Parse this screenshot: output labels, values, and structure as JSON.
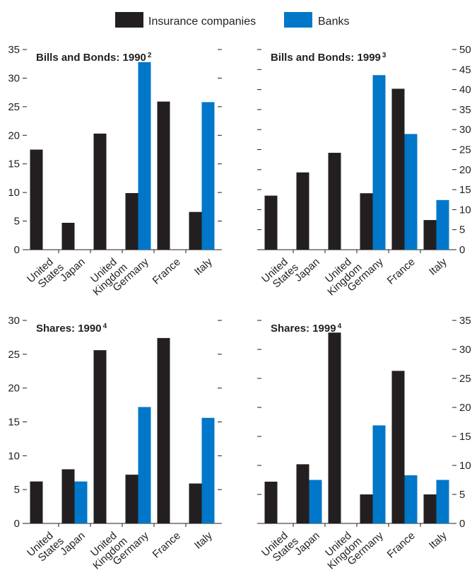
{
  "colors": {
    "insurance": "#231f20",
    "banks": "#0077c8",
    "axis": "#231f20"
  },
  "legend": [
    {
      "label": "Insurance companies",
      "color": "#231f20"
    },
    {
      "label": "Banks",
      "color": "#0077c8"
    }
  ],
  "chart_data": [
    {
      "type": "bar",
      "title": "Bills and Bonds: 1990",
      "title_sup": "2",
      "categories": [
        "United States",
        "Japan",
        "United Kingdom",
        "Germany",
        "France",
        "Italy"
      ],
      "series": [
        {
          "name": "Insurance companies",
          "values": [
            17.5,
            4.7,
            20.3,
            9.9,
            25.9,
            6.6
          ]
        },
        {
          "name": "Banks",
          "values": [
            0,
            0,
            0,
            32.8,
            0,
            25.8
          ]
        }
      ],
      "y_axis": "left",
      "ylim": [
        0,
        35
      ],
      "yticks": [
        0,
        5,
        10,
        15,
        20,
        25,
        30,
        35
      ]
    },
    {
      "type": "bar",
      "title": "Bills and Bonds: 1999",
      "title_sup": "3",
      "categories": [
        "United States",
        "Japan",
        "United Kingdom",
        "Germany",
        "France",
        "Italy"
      ],
      "series": [
        {
          "name": "Insurance companies",
          "values": [
            13.5,
            19.3,
            24.2,
            14.1,
            40.2,
            7.4
          ]
        },
        {
          "name": "Banks",
          "values": [
            0,
            0,
            0,
            43.6,
            28.9,
            12.4
          ]
        }
      ],
      "y_axis": "right",
      "ylim": [
        0,
        50
      ],
      "yticks": [
        0,
        5,
        10,
        15,
        20,
        25,
        30,
        35,
        40,
        45,
        50
      ]
    },
    {
      "type": "bar",
      "title": "Shares: 1990",
      "title_sup": "4",
      "categories": [
        "United States",
        "Japan",
        "United Kingdom",
        "Germany",
        "France",
        "Italy"
      ],
      "series": [
        {
          "name": "Insurance companies",
          "values": [
            6.2,
            8.0,
            25.6,
            7.2,
            27.4,
            5.9
          ]
        },
        {
          "name": "Banks",
          "values": [
            0,
            6.2,
            0,
            17.2,
            0,
            15.6
          ]
        }
      ],
      "y_axis": "left",
      "ylim": [
        0,
        30
      ],
      "yticks": [
        0,
        5,
        10,
        15,
        20,
        25,
        30
      ]
    },
    {
      "type": "bar",
      "title": "Shares: 1999",
      "title_sup": "4",
      "categories": [
        "United States",
        "Japan",
        "United Kingdom",
        "Germany",
        "France",
        "Italy"
      ],
      "series": [
        {
          "name": "Insurance companies",
          "values": [
            7.2,
            10.2,
            32.9,
            5.0,
            26.3,
            5.0
          ]
        },
        {
          "name": "Banks",
          "values": [
            0,
            7.5,
            0,
            16.9,
            8.3,
            7.5
          ]
        }
      ],
      "y_axis": "right",
      "ylim": [
        0,
        35
      ],
      "yticks": [
        0,
        5,
        10,
        15,
        20,
        25,
        30,
        35
      ]
    }
  ]
}
